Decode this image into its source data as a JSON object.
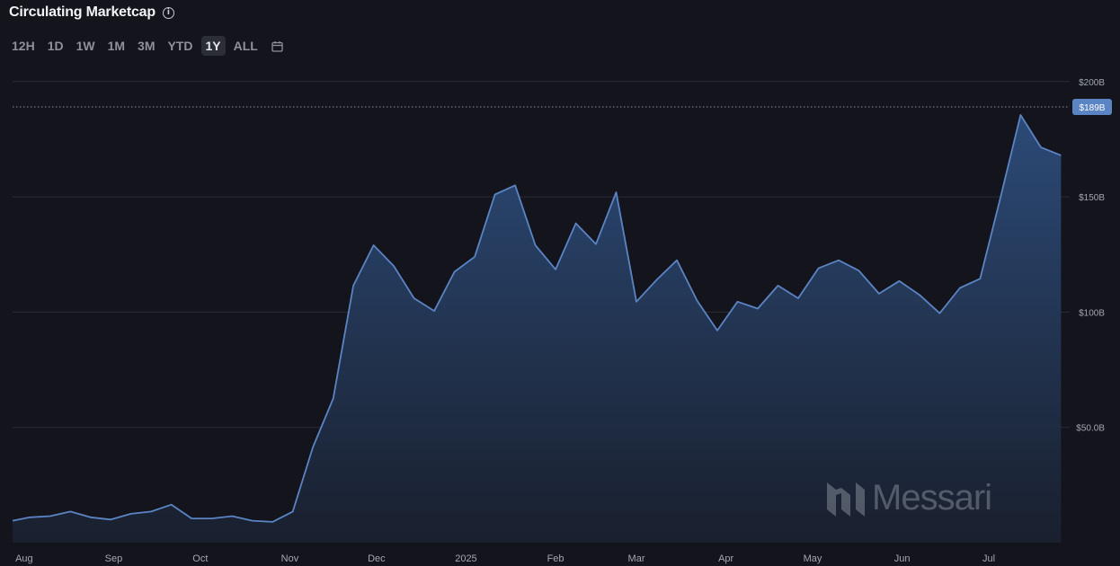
{
  "header": {
    "title": "Circulating Marketcap"
  },
  "ranges": [
    {
      "label": "12H",
      "active": false
    },
    {
      "label": "1D",
      "active": false
    },
    {
      "label": "1W",
      "active": false
    },
    {
      "label": "1M",
      "active": false
    },
    {
      "label": "3M",
      "active": false
    },
    {
      "label": "YTD",
      "active": false
    },
    {
      "label": "1Y",
      "active": true
    },
    {
      "label": "ALL",
      "active": false
    }
  ],
  "watermark": "Messari",
  "chart_data": {
    "type": "area",
    "title": "Circulating Marketcap",
    "xlabel": "",
    "ylabel": "",
    "x_ticks": [
      "Aug",
      "Sep",
      "Oct",
      "Nov",
      "Dec",
      "2025",
      "Feb",
      "Mar",
      "Apr",
      "May",
      "Jun",
      "Jul"
    ],
    "y_ticks": [
      {
        "value": 50,
        "label": "$50.0B"
      },
      {
        "value": 100,
        "label": "$100B"
      },
      {
        "value": 150,
        "label": "$150B"
      },
      {
        "value": 200,
        "label": "$200B"
      }
    ],
    "ylim": [
      0,
      212
    ],
    "xlim": [
      "2024-07-28",
      "2025-07-29"
    ],
    "current_value": 189,
    "current_label": "$189B",
    "grid": true,
    "series": [
      {
        "color": "#5b84c4",
        "x": [
          "2024-07-28",
          "2024-08-03",
          "2024-08-10",
          "2024-08-17",
          "2024-08-24",
          "2024-08-31",
          "2024-09-07",
          "2024-09-14",
          "2024-09-21",
          "2024-09-28",
          "2024-10-05",
          "2024-10-12",
          "2024-10-19",
          "2024-10-26",
          "2024-11-02",
          "2024-11-09",
          "2024-11-16",
          "2024-11-23",
          "2024-11-30",
          "2024-12-07",
          "2024-12-14",
          "2024-12-21",
          "2024-12-28",
          "2025-01-04",
          "2025-01-11",
          "2025-01-18",
          "2025-01-25",
          "2025-02-01",
          "2025-02-08",
          "2025-02-15",
          "2025-02-22",
          "2025-03-01",
          "2025-03-08",
          "2025-03-15",
          "2025-03-22",
          "2025-03-29",
          "2025-04-05",
          "2025-04-12",
          "2025-04-19",
          "2025-04-26",
          "2025-05-03",
          "2025-05-10",
          "2025-05-17",
          "2025-05-24",
          "2025-05-31",
          "2025-06-07",
          "2025-06-14",
          "2025-06-21",
          "2025-06-28",
          "2025-07-05",
          "2025-07-12",
          "2025-07-19",
          "2025-07-26"
        ],
        "y": [
          9.5,
          11,
          11.5,
          13.5,
          11,
          10,
          12.5,
          13.5,
          16.5,
          10.5,
          10.5,
          11.5,
          9.5,
          9,
          13.5,
          41.5,
          62.5,
          111.5,
          129,
          120,
          106,
          100.5,
          117.5,
          124,
          151,
          155,
          129,
          118.5,
          138.5,
          129.5,
          152,
          104.5,
          114,
          122.5,
          105,
          92,
          104.5,
          101.5,
          111.5,
          106,
          119,
          122.5,
          118,
          108,
          113.5,
          107.5,
          99.5,
          110.5,
          114.5,
          149.5,
          185.5,
          171.5,
          168
        ]
      }
    ]
  }
}
